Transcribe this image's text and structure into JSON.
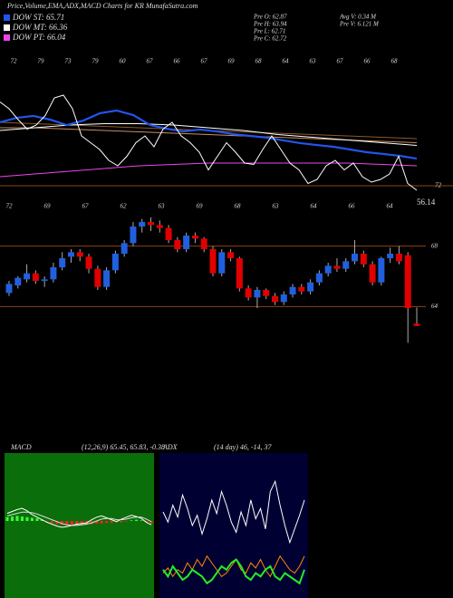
{
  "header": {
    "title": "Price,Volume,EMA,ADX,MACD Charts for KR MunafaSutra.com",
    "legend": [
      {
        "label": "DOW ST: 65.71",
        "color": "#2255ee"
      },
      {
        "label": "DOW MT: 66.36",
        "color": "#ffffff"
      },
      {
        "label": "DOW PT: 66.04",
        "color": "#ee44ee"
      }
    ],
    "stats": [
      "Pre  O: 62.87",
      "Pre  H: 63.94",
      "Pre  L: 62.71",
      "Pre  C: 62.72",
      "Avg V: 0.34  M",
      "Pre  V: 6.121 M"
    ]
  },
  "chart_data": [
    {
      "type": "line",
      "ylim": [
        62,
        72
      ],
      "x_labels_top": [
        "72",
        "79",
        "73",
        "79",
        "60",
        "67",
        "66",
        "67",
        "69",
        "68",
        "64",
        "63",
        "67",
        "66",
        "68"
      ],
      "x_labels_bottom": [
        "72",
        "69",
        "67",
        "62",
        "63",
        "69",
        "68",
        "63",
        "64",
        "66",
        "64"
      ],
      "right_label": "72",
      "line_color": "#8b4513",
      "series": [
        {
          "color": "#8b5a2b",
          "values": [
            67.0,
            66.9,
            66.8,
            66.7,
            66.6,
            66.5,
            66.4,
            66.3,
            66.2,
            66.1,
            66.0,
            65.9,
            65.8
          ]
        },
        {
          "color": "#c89060",
          "values": [
            66.6,
            66.6,
            66.5,
            66.4,
            66.3,
            66.2,
            66.1,
            66.0,
            65.9,
            65.8,
            65.7,
            65.6,
            65.5
          ]
        },
        {
          "color": "#ee44ee",
          "values": [
            63.0,
            63.2,
            63.4,
            63.6,
            63.8,
            63.9,
            64.0,
            64.0,
            64.0,
            64.0,
            64.0,
            63.9,
            63.8
          ]
        },
        {
          "color": "#ffffff",
          "values": [
            66.4,
            66.6,
            66.8,
            66.9,
            66.9,
            66.8,
            66.6,
            66.4,
            66.1,
            65.9,
            65.7,
            65.5,
            65.3
          ]
        },
        {
          "color": "#2255ee",
          "values": [
            67.0,
            67.33,
            67.47,
            67.2,
            66.8,
            67.13,
            67.67,
            67.87,
            67.53,
            66.8,
            66.53,
            66.33,
            66.47,
            66.33,
            66.13,
            66.0,
            65.87,
            65.67,
            65.47,
            65.33,
            65.2,
            65.0,
            64.8,
            64.67,
            64.53,
            64.33
          ]
        },
        {
          "color": "#ffffff",
          "values": [
            68.5,
            68.0,
            67.2,
            66.5,
            66.8,
            67.5,
            68.8,
            69.0,
            68.0,
            66.0,
            65.5,
            65.0,
            64.2,
            63.8,
            64.5,
            65.5,
            66.0,
            65.2,
            66.5,
            67.0,
            66.0,
            65.5,
            64.8,
            63.5,
            64.5,
            65.5,
            64.8,
            64.0,
            63.9,
            65.0,
            66.0,
            65.0,
            64.0,
            63.5,
            62.5,
            62.8,
            63.8,
            64.2,
            63.5,
            64.0,
            63.0,
            62.6,
            62.8,
            63.2,
            64.5,
            62.5,
            62.0
          ]
        }
      ]
    },
    {
      "type": "candlestick",
      "ylim": [
        60.3,
        70.5
      ],
      "yticks": [
        68,
        64
      ],
      "grid": true,
      "grid_color": "#8b4513",
      "up_color": "#2060e0",
      "down_color": "#e00000",
      "annotation": "56.14",
      "open": [
        64.9,
        65.4,
        65.8,
        66.2,
        65.7,
        65.8,
        66.6,
        67.3,
        67.6,
        67.3,
        66.5,
        65.3,
        66.4,
        67.5,
        68.2,
        69.3,
        69.6,
        69.4,
        69.2,
        68.4,
        67.8,
        68.7,
        68.5,
        67.8,
        66.2,
        67.6,
        67.2,
        65.2,
        64.6,
        65.1,
        64.7,
        64.3,
        64.8,
        65.3,
        65.0,
        65.6,
        66.2,
        66.7,
        66.5,
        67.0,
        67.5,
        66.8,
        65.6,
        67.2,
        67.5,
        67.4,
        62.87
      ],
      "high": [
        65.7,
        66.0,
        66.8,
        66.4,
        66.0,
        66.9,
        67.6,
        67.8,
        67.8,
        67.5,
        66.7,
        66.6,
        67.7,
        68.4,
        69.6,
        69.8,
        69.9,
        69.7,
        69.4,
        68.6,
        68.9,
        68.9,
        68.6,
        68.0,
        67.8,
        67.8,
        67.3,
        65.4,
        65.3,
        65.2,
        64.9,
        65.0,
        65.5,
        65.5,
        65.8,
        66.4,
        66.9,
        67.2,
        67.2,
        68.4,
        67.7,
        67.0,
        67.3,
        67.9,
        68.0,
        67.6,
        63.94
      ],
      "low": [
        64.7,
        65.2,
        65.6,
        65.5,
        65.3,
        65.6,
        66.4,
        66.9,
        67.0,
        66.2,
        65.1,
        65.1,
        66.2,
        67.3,
        68.0,
        68.9,
        69.0,
        68.9,
        68.2,
        67.6,
        67.6,
        68.2,
        67.6,
        66.0,
        66.0,
        67.0,
        65.0,
        64.4,
        63.9,
        64.5,
        64.1,
        64.1,
        64.6,
        64.8,
        64.8,
        65.4,
        66.0,
        66.3,
        66.3,
        66.8,
        66.6,
        65.4,
        65.4,
        66.9,
        66.8,
        61.6,
        62.71
      ],
      "close": [
        65.5,
        65.9,
        66.2,
        65.7,
        65.8,
        66.6,
        67.2,
        67.6,
        67.3,
        66.5,
        65.3,
        66.4,
        67.5,
        68.2,
        69.3,
        69.6,
        69.4,
        69.2,
        68.4,
        67.8,
        68.7,
        68.5,
        67.8,
        66.2,
        67.6,
        67.2,
        65.2,
        64.6,
        65.1,
        64.7,
        64.3,
        64.8,
        65.3,
        65.0,
        65.6,
        66.2,
        66.7,
        66.5,
        67.0,
        67.5,
        66.8,
        65.6,
        67.2,
        67.5,
        67.0,
        63.9,
        62.72
      ]
    },
    {
      "type": "macd",
      "title": "MACD",
      "subtitle": "(12,26,9) 65.45, 65.83, -0.38",
      "ylim": [
        -4,
        4
      ],
      "background": "#0a6e0a",
      "pos_color": "#33ff33",
      "neg_color": "#ff2222",
      "histogram": [
        0.6,
        0.7,
        0.8,
        0.7,
        0.6,
        0.5,
        0.4,
        0.2,
        -0.1,
        -0.3,
        -0.5,
        -0.6,
        -0.7,
        -0.7,
        -0.6,
        -0.6,
        -0.5,
        -0.5,
        -0.4,
        -0.4,
        -0.3,
        -0.3,
        -0.2,
        -0.2,
        -0.1,
        0.1,
        0.2,
        0.1,
        -0.2,
        -0.38
      ],
      "series": [
        {
          "color": "#ffffff",
          "values": [
            1.2,
            1.5,
            1.8,
            2.0,
            1.6,
            1.0,
            0.6,
            0.2,
            -0.2,
            -0.5,
            -0.8,
            -1.0,
            -0.9,
            -0.7,
            -0.5,
            -0.4,
            -0.3,
            0.2,
            0.6,
            0.8,
            0.5,
            0.2,
            -0.1,
            0.3,
            0.6,
            0.9,
            0.7,
            0.4,
            -0.2,
            -0.6
          ]
        },
        {
          "color": "#dddddd",
          "values": [
            0.8,
            1.0,
            1.2,
            1.4,
            1.4,
            1.3,
            1.1,
            0.8,
            0.5,
            0.2,
            -0.1,
            -0.4,
            -0.6,
            -0.7,
            -0.7,
            -0.6,
            -0.5,
            -0.3,
            0.0,
            0.3,
            0.4,
            0.4,
            0.2,
            0.2,
            0.3,
            0.5,
            0.6,
            0.6,
            0.3,
            -0.1
          ]
        }
      ]
    },
    {
      "type": "adx",
      "title": "ADX",
      "subtitle": "(14 day) 46, -14, 37",
      "ylim": [
        0,
        80
      ],
      "background": "#000033",
      "series": [
        {
          "color": "#ffffff",
          "values": [
            48,
            42,
            52,
            45,
            58,
            50,
            40,
            46,
            35,
            44,
            55,
            47,
            60,
            52,
            42,
            36,
            48,
            40,
            55,
            44,
            50,
            38,
            60,
            66,
            52,
            40,
            30,
            38,
            46,
            55
          ]
        },
        {
          "color": "#ff8800",
          "values": [
            12,
            15,
            10,
            14,
            12,
            18,
            14,
            20,
            16,
            22,
            18,
            14,
            10,
            12,
            16,
            20,
            14,
            12,
            18,
            15,
            20,
            14,
            10,
            16,
            22,
            18,
            14,
            12,
            16,
            22
          ]
        },
        {
          "color": "#22ee22",
          "values": [
            14,
            10,
            16,
            12,
            8,
            10,
            14,
            12,
            10,
            6,
            8,
            12,
            16,
            14,
            18,
            20,
            16,
            10,
            8,
            12,
            10,
            14,
            16,
            10,
            8,
            12,
            10,
            8,
            6,
            14
          ]
        }
      ]
    }
  ]
}
